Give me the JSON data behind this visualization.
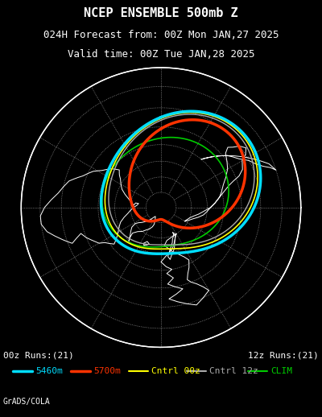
{
  "title_line1": "NCEP ENSEMBLE 500mb Z",
  "title_line2": "024H Forecast from: 00Z Mon JAN,27 2025",
  "title_line3": "Valid time: 00Z Tue JAN,28 2025",
  "bg_color": "#000000",
  "legend_items": [
    {
      "label": "5460m",
      "color": "#00ddff",
      "lw": 2.5
    },
    {
      "label": "5700m",
      "color": "#ff3300",
      "lw": 2.5
    },
    {
      "label": "Cntrl 00z",
      "color": "#ffff00",
      "lw": 1.5
    },
    {
      "label": "Cntrl 12z",
      "color": "#aaaaaa",
      "lw": 1.5
    },
    {
      "label": "CLIM",
      "color": "#00cc00",
      "lw": 1.5
    }
  ],
  "bottom_left_text": "00z Runs:(21)",
  "bottom_right_text": "12z Runs:(21)",
  "footer_text": "GrADS/COLA",
  "title_color": "#ffffff",
  "title_fontsize": 11,
  "subtitle_fontsize": 9,
  "legend_fontsize": 8,
  "footer_fontsize": 7
}
